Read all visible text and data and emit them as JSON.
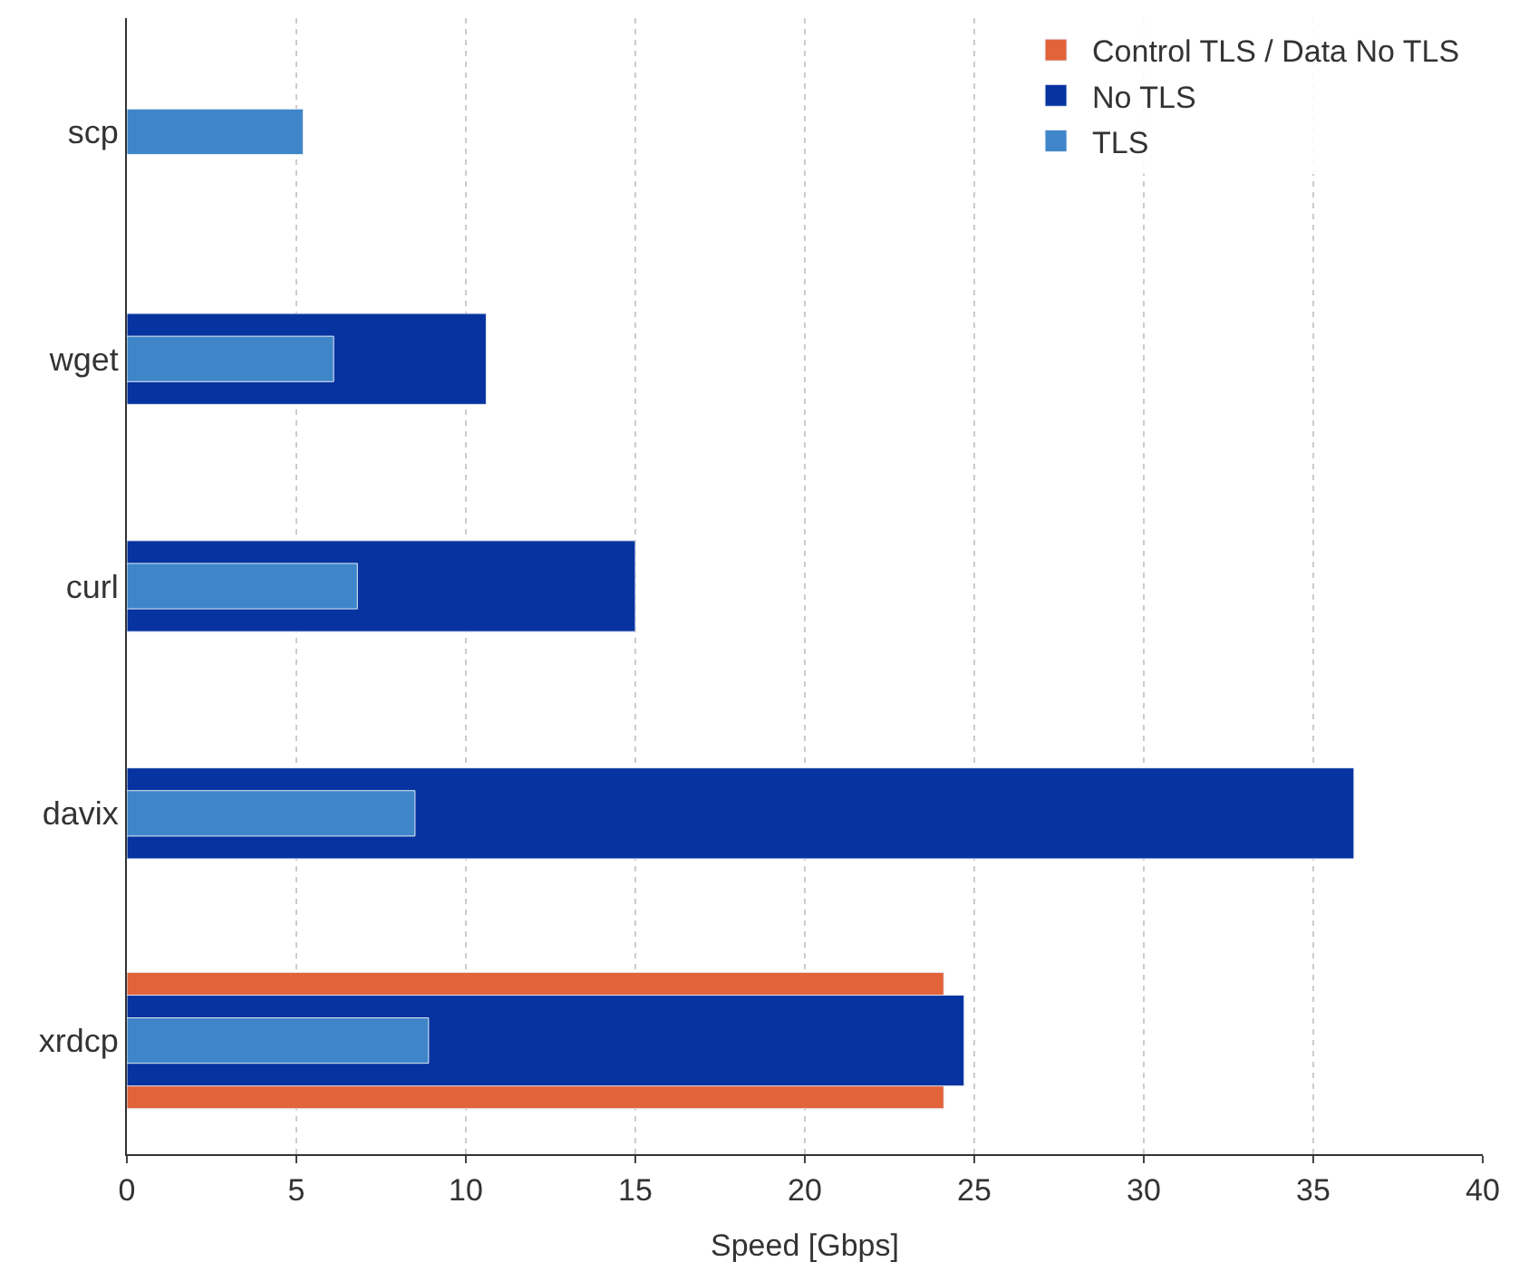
{
  "chart_data": {
    "type": "bar",
    "orientation": "horizontal",
    "xlabel": "Speed [Gbps]",
    "categories": [
      "scp",
      "wget",
      "curl",
      "davix",
      "xrdcp"
    ],
    "series": [
      {
        "name": "Control TLS / Data No TLS",
        "color": "#e2623a",
        "values": [
          null,
          null,
          null,
          null,
          24.1
        ]
      },
      {
        "name": "No TLS",
        "color": "#0633a0",
        "values": [
          null,
          10.6,
          15.0,
          36.2,
          24.7
        ]
      },
      {
        "name": "TLS",
        "color": "#3f86c9",
        "values": [
          5.2,
          6.1,
          6.8,
          8.5,
          8.9
        ]
      }
    ],
    "xlim": [
      0,
      40
    ],
    "xticks": [
      0,
      5,
      10,
      15,
      20,
      25,
      30,
      35,
      40
    ],
    "grid": "x",
    "legend": "top right"
  }
}
